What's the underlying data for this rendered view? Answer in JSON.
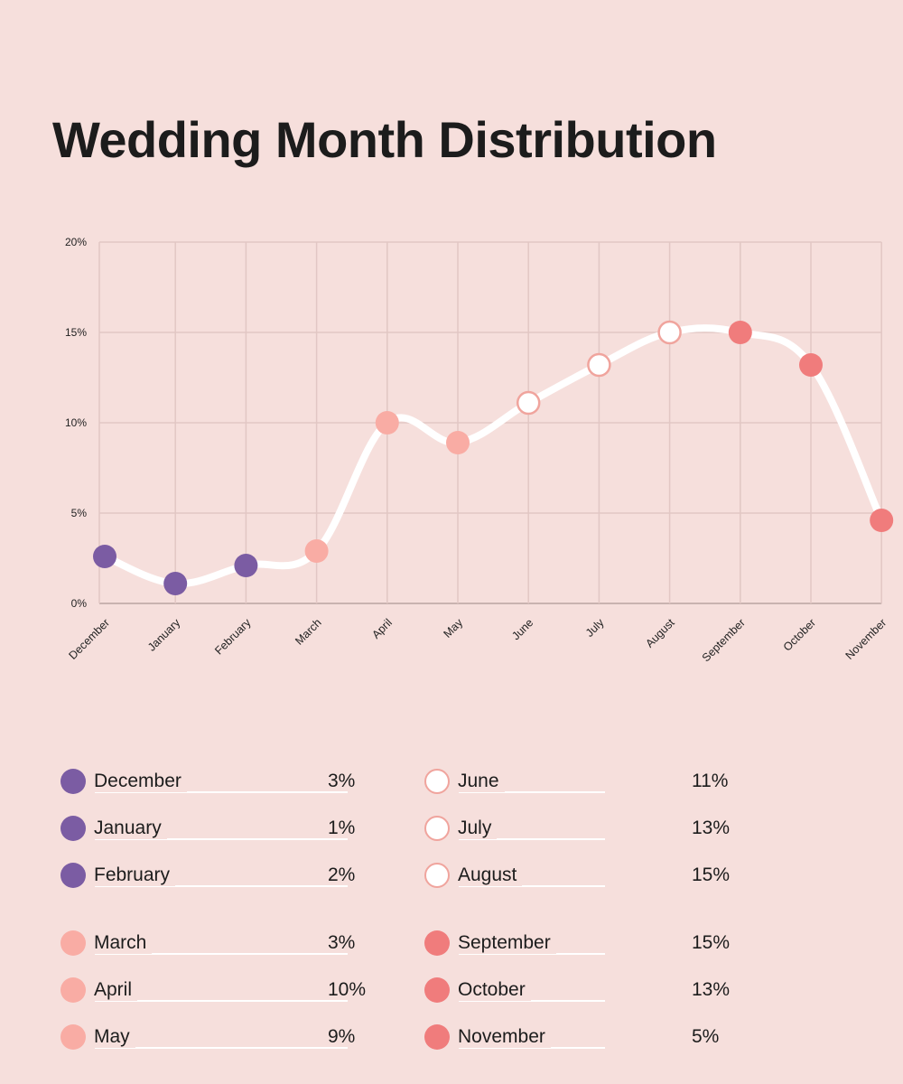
{
  "title": "Wedding Month Distribution",
  "colors": {
    "background": "#f6dfdc",
    "winter": "#7b5ca3",
    "spring": "#f9aca4",
    "summer": "#ffffff",
    "summer_stroke": "#f0a49d",
    "fall": "#f07c7c",
    "line": "#ffffff",
    "grid": "#e2c7c4"
  },
  "chart_data": {
    "type": "line",
    "categories": [
      "December",
      "January",
      "February",
      "March",
      "April",
      "May",
      "June",
      "July",
      "August",
      "September",
      "October",
      "November"
    ],
    "values": [
      2.6,
      1.1,
      2.1,
      2.9,
      10.0,
      8.9,
      11.1,
      13.2,
      15.0,
      15.0,
      13.2,
      4.6
    ],
    "marker_groups": [
      "winter",
      "winter",
      "winter",
      "spring",
      "spring",
      "spring",
      "summer",
      "summer",
      "summer",
      "fall",
      "fall",
      "fall"
    ],
    "ylim": [
      0,
      20
    ],
    "yticks": [
      0,
      5,
      10,
      15,
      20
    ],
    "ytick_labels": [
      "0%",
      "5%",
      "10%",
      "15%",
      "20%"
    ],
    "grid": true,
    "smooth": true
  },
  "legend": {
    "columns": [
      [
        {
          "label": "December",
          "value": "3%",
          "group": "winter"
        },
        {
          "label": "January",
          "value": "1%",
          "group": "winter"
        },
        {
          "label": "February",
          "value": "2%",
          "group": "winter"
        },
        {
          "label": "March",
          "value": "3%",
          "group": "spring"
        },
        {
          "label": "April",
          "value": "10%",
          "group": "spring"
        },
        {
          "label": "May",
          "value": "9%",
          "group": "spring"
        }
      ],
      [
        {
          "label": "June",
          "value": "11%",
          "group": "summer"
        },
        {
          "label": "July",
          "value": "13%",
          "group": "summer"
        },
        {
          "label": "August",
          "value": "15%",
          "group": "summer"
        },
        {
          "label": "September",
          "value": "15%",
          "group": "fall"
        },
        {
          "label": "October",
          "value": "13%",
          "group": "fall"
        },
        {
          "label": "November",
          "value": "5%",
          "group": "fall"
        }
      ]
    ]
  }
}
